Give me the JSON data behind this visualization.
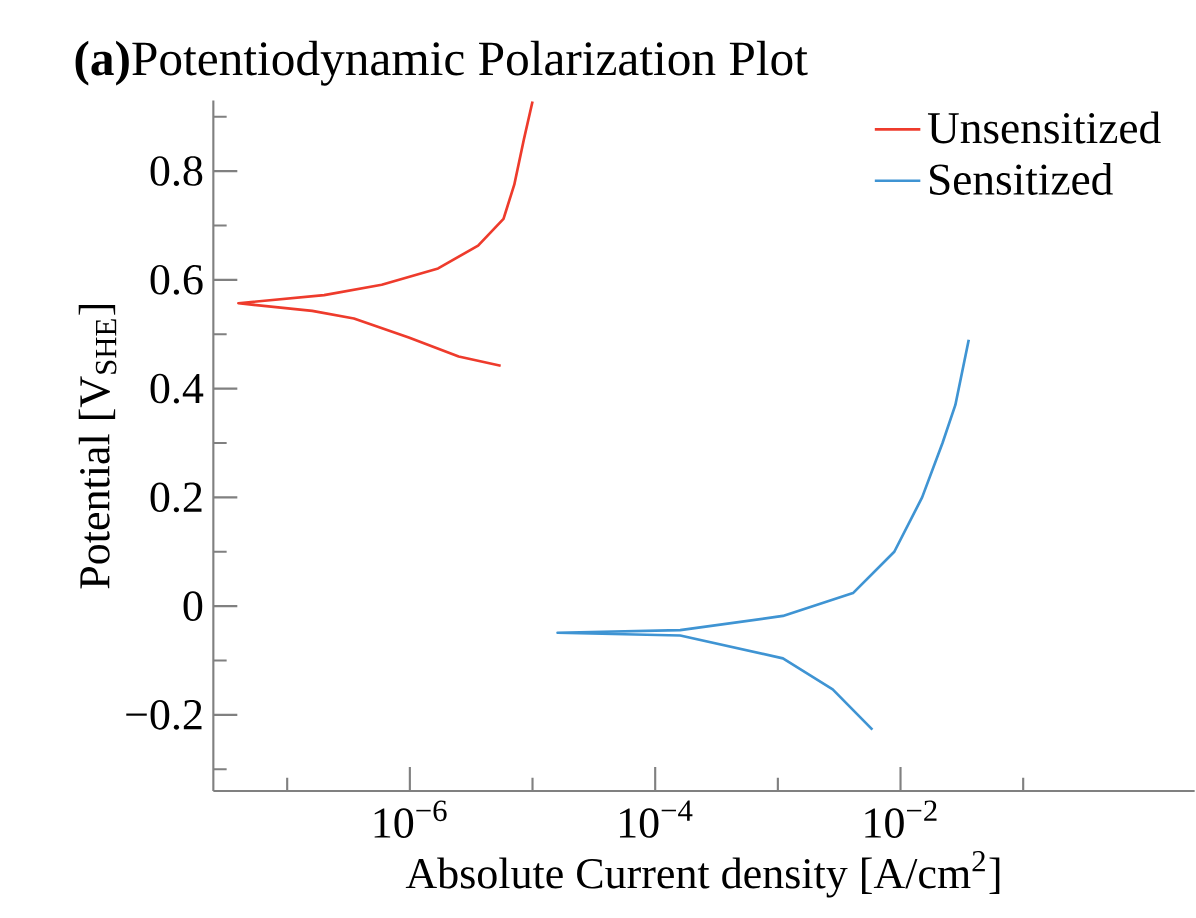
{
  "chart_data": {
    "type": "line",
    "title": "**(a)**Potentiodynamic Polarization Plot",
    "xlabel": "Absolute Current density [A/cm$^{2}$]",
    "ylabel": "Potential [V$_{SHE}$]",
    "log": "x",
    "legend": "top right",
    "xlim": [
      2.5e-08,
      2.5
    ],
    "ylim": [
      -0.34,
      0.93
    ],
    "xticks": [
      {
        "value": 1e-07,
        "label": null
      },
      {
        "value": 1e-06,
        "label": "10$^{−6}$"
      },
      {
        "value": 1e-05,
        "label": null
      },
      {
        "value": 0.0001,
        "label": "10$^{−4}$"
      },
      {
        "value": 0.001,
        "label": null
      },
      {
        "value": 0.01,
        "label": "10$^{−2}$"
      },
      {
        "value": 0.1,
        "label": null
      }
    ],
    "yticks": [
      {
        "value": -0.3,
        "label": null
      },
      {
        "value": -0.2,
        "label": "−0.2"
      },
      {
        "value": -0.1,
        "label": null
      },
      0,
      {
        "value": 0.1,
        "label": null
      },
      0.2,
      {
        "value": 0.3,
        "label": null
      },
      0.4,
      {
        "value": 0.5,
        "label": null
      },
      0.6,
      {
        "value": 0.7,
        "label": null
      },
      0.8,
      {
        "value": 0.9,
        "label": null
      }
    ],
    "series": [
      {
        "name": "Unsensitized",
        "color": "#ee3b2c",
        "x": [
          5.5e-06,
          2.5e-06,
          9.8e-07,
          3.5e-07,
          1.6e-07,
          4e-08,
          2e-07,
          5.9e-07,
          1.7e-06,
          3.6e-06,
          5.8e-06,
          7.1e-06,
          8.5e-06,
          1e-05
        ],
        "values": [
          0.442,
          0.459,
          0.494,
          0.529,
          0.543,
          0.557,
          0.572,
          0.591,
          0.621,
          0.663,
          0.712,
          0.775,
          0.858,
          0.928
        ]
      },
      {
        "name": "Sensitized",
        "color": "#3f94d3",
        "x": [
          0.0059,
          0.0028,
          0.0011,
          0.00016,
          1.6e-05,
          0.00016,
          0.0011,
          0.0041,
          0.0089,
          0.015,
          0.022,
          0.028,
          0.036
        ],
        "values": [
          -0.227,
          -0.153,
          -0.096,
          -0.054,
          -0.049,
          -0.044,
          -0.018,
          0.024,
          0.1,
          0.2,
          0.3,
          0.37,
          0.49
        ]
      }
    ]
  }
}
